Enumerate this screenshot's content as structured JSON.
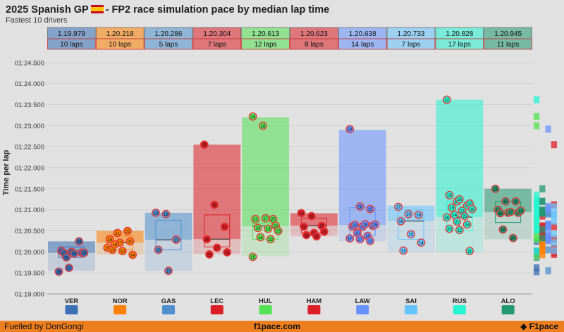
{
  "title_left": "2025 Spanish GP",
  "title_right": "- FP2 race simulation pace by median lap time",
  "subtitle": "Fastest 10 drivers",
  "footer": {
    "credit": "Fuelled by DonGongi",
    "site": "f1pace.com",
    "brand": "F1pace"
  },
  "chart_data": {
    "type": "box+strip",
    "ylabel": "Time per lap",
    "y_ticks": [
      "01:19.000",
      "01:19.500",
      "01:20.000",
      "01:20.500",
      "01:21.000",
      "01:21.500",
      "01:22.000",
      "01:22.500",
      "01:23.000",
      "01:23.500",
      "01:24.000",
      "01:24.500"
    ],
    "ylim": [
      79.0,
      84.8
    ],
    "drivers": [
      {
        "code": "VER",
        "median_label": "1.19.979",
        "laps_label": "10 laps",
        "color": "#3b6fb6",
        "team_logo": "red-bull-logo",
        "median": 79.979,
        "q1": 79.87,
        "q3": 80.12,
        "min": 79.55,
        "max": 80.25,
        "laps": [
          [
            26,
            79.53
          ],
          [
            27,
            79.62
          ],
          [
            23,
            80.25
          ],
          [
            21,
            80.02
          ],
          [
            23,
            80.0
          ],
          [
            25,
            79.98
          ],
          [
            27,
            79.97
          ],
          [
            20,
            79.96
          ],
          [
            20,
            79.98
          ],
          [
            24,
            79.87
          ]
        ]
      },
      {
        "code": "NOR",
        "median_label": "1.20.218",
        "laps_label": "10 laps",
        "color": "#ff8000",
        "team_logo": "mclaren-logo",
        "median": 80.218,
        "q1": 80.05,
        "q3": 80.38,
        "min": 79.93,
        "max": 80.5,
        "laps": [
          [
            19,
            80.1
          ],
          [
            21,
            80.45
          ],
          [
            22,
            80.5
          ],
          [
            15,
            80.3
          ],
          [
            17,
            80.22
          ],
          [
            20,
            80.25
          ],
          [
            16,
            80.05
          ],
          [
            13,
            80.02
          ],
          [
            14,
            79.93
          ],
          [
            18,
            80.18
          ]
        ]
      },
      {
        "code": "GAS",
        "median_label": "1.20.286",
        "laps_label": "5 laps",
        "color": "#4f8fce",
        "team_logo": "alpine-logo",
        "median": 80.286,
        "q1": 80.05,
        "q3": 80.75,
        "min": 79.55,
        "max": 80.93,
        "laps": [
          [
            19,
            80.93
          ],
          [
            18,
            80.9
          ],
          [
            17,
            80.29
          ],
          [
            16,
            80.05
          ],
          [
            15,
            79.55
          ]
        ]
      },
      {
        "code": "LEC",
        "median_label": "1.20.304",
        "laps_label": "7 laps",
        "color": "#dc1f26",
        "team_logo": "ferrari-logo",
        "median": 80.304,
        "q1": 80.12,
        "q3": 80.88,
        "min": 79.95,
        "max": 82.55,
        "laps": [
          [
            26,
            82.55
          ],
          [
            28,
            81.12
          ],
          [
            31,
            80.6
          ],
          [
            30,
            80.3
          ],
          [
            27,
            80.1
          ],
          [
            24,
            79.99
          ],
          [
            25,
            79.94
          ]
        ]
      },
      {
        "code": "HUL",
        "median_label": "1.20.613",
        "laps_label": "12 laps",
        "color": "#52e252",
        "team_logo": "sauber-logo",
        "median": 80.613,
        "q1": 80.3,
        "q3": 80.68,
        "min": 79.9,
        "max": 83.2,
        "laps": [
          [
            24,
            83.22
          ],
          [
            18,
            83.0
          ],
          [
            25,
            80.78
          ],
          [
            21,
            80.78
          ],
          [
            17,
            80.8
          ],
          [
            20,
            80.62
          ],
          [
            14,
            80.57
          ],
          [
            19,
            80.55
          ],
          [
            23,
            80.5
          ],
          [
            16,
            80.35
          ],
          [
            22,
            80.3
          ],
          [
            15,
            79.88
          ]
        ]
      },
      {
        "code": "HAM",
        "median_label": "1.20.623",
        "laps_label": "8 laps",
        "color": "#dc1f26",
        "team_logo": "ferrari-logo",
        "median": 80.623,
        "q1": 80.45,
        "q3": 80.8,
        "min": 80.37,
        "max": 80.92,
        "laps": [
          [
            19,
            80.92
          ],
          [
            15,
            80.85
          ],
          [
            17,
            80.62
          ],
          [
            20,
            80.6
          ],
          [
            22,
            80.45
          ],
          [
            21,
            80.48
          ],
          [
            18,
            80.4
          ],
          [
            16,
            80.37
          ]
        ]
      },
      {
        "code": "LAW",
        "median_label": "1.20.638",
        "laps_label": "14 laps",
        "color": "#6692ff",
        "team_logo": "racing-bulls-logo",
        "median": 80.638,
        "q1": 80.38,
        "q3": 81.05,
        "min": 80.25,
        "max": 82.9,
        "laps": [
          [
            23,
            82.92
          ],
          [
            26,
            81.08
          ],
          [
            15,
            81.02
          ],
          [
            24,
            80.6
          ],
          [
            22,
            80.6
          ],
          [
            21,
            80.62
          ],
          [
            19,
            80.64
          ],
          [
            18,
            80.66
          ],
          [
            25,
            80.65
          ],
          [
            20,
            80.45
          ],
          [
            16,
            80.38
          ],
          [
            17,
            80.32
          ],
          [
            27,
            80.3
          ],
          [
            13,
            80.26
          ]
        ]
      },
      {
        "code": "SAI",
        "median_label": "1.20.733",
        "laps_label": "7 laps",
        "color": "#64c4ff",
        "team_logo": "williams-logo",
        "median": 80.733,
        "q1": 80.3,
        "q3": 81.0,
        "min": 80.0,
        "max": 81.1,
        "laps": [
          [
            17,
            81.07
          ],
          [
            19,
            80.9
          ],
          [
            18,
            80.88
          ],
          [
            16,
            80.73
          ],
          [
            15,
            80.42
          ],
          [
            14,
            80.22
          ],
          [
            13,
            80.03
          ]
        ]
      },
      {
        "code": "RUS",
        "median_label": "1.20.828",
        "laps_label": "17 laps",
        "color": "#27f4d2",
        "team_logo": "mercedes-logo",
        "median": 80.828,
        "q1": 80.5,
        "q3": 81.2,
        "min": 80.0,
        "max": 83.62,
        "laps": [
          [
            22,
            83.62
          ],
          [
            17,
            81.2
          ],
          [
            24,
            81.1
          ],
          [
            18,
            81.35
          ],
          [
            26,
            81.25
          ],
          [
            27,
            81.15
          ],
          [
            19,
            81.05
          ],
          [
            23,
            80.98
          ],
          [
            16,
            81.02
          ],
          [
            14,
            80.88
          ],
          [
            25,
            80.85
          ],
          [
            28,
            80.82
          ],
          [
            21,
            80.72
          ],
          [
            15,
            80.65
          ],
          [
            20,
            80.55
          ],
          [
            12,
            80.52
          ],
          [
            11,
            80.02
          ]
        ]
      },
      {
        "code": "ALO",
        "median_label": "1.20.945",
        "laps_label": "11 laps",
        "color": "#229971",
        "team_logo": "aston-martin-logo",
        "median": 80.945,
        "q1": 80.7,
        "q3": 81.2,
        "min": 80.3,
        "max": 81.5,
        "laps": [
          [
            15,
            81.5
          ],
          [
            13,
            81.2
          ],
          [
            11,
            81.2
          ],
          [
            14,
            81.0
          ],
          [
            12,
            80.93
          ],
          [
            19,
            80.93
          ],
          [
            16,
            80.92
          ],
          [
            17,
            80.95
          ],
          [
            10,
            80.98
          ],
          [
            18,
            80.53
          ],
          [
            20,
            80.33
          ]
        ]
      }
    ]
  }
}
